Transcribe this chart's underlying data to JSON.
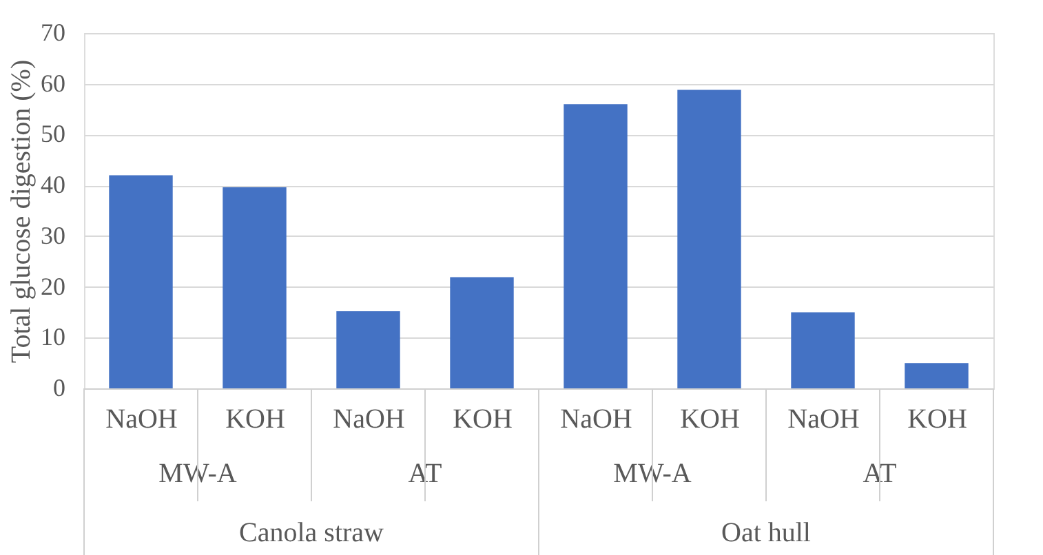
{
  "chart_data": {
    "type": "bar",
    "ylabel": "Total glucose digestion (%)",
    "categories": [
      "NaOH",
      "KOH",
      "NaOH",
      "KOH",
      "NaOH",
      "KOH",
      "NaOH",
      "KOH"
    ],
    "values": [
      42.0,
      39.6,
      15.2,
      21.9,
      56.0,
      58.8,
      15.0,
      5.0
    ],
    "color": "#4472c4",
    "annotations": [
      "MW-A",
      "AT",
      "MW-A",
      "AT",
      "Canola straw",
      "Oat hull"
    ],
    "ylim": [
      0,
      70
    ],
    "yticks": [
      0,
      10,
      20,
      30,
      40,
      50,
      60,
      70
    ],
    "grid": "y"
  }
}
